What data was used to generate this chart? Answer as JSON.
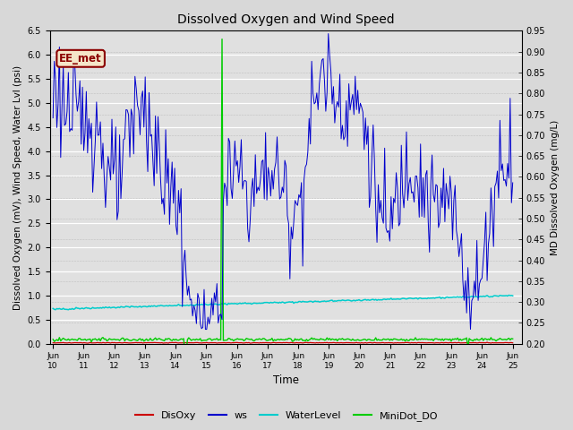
{
  "title": "Dissolved Oxygen and Wind Speed",
  "xlabel": "Time",
  "ylabel_left": "Dissolved Oxygen (mV), Wind Speed, Water Lvl (psi)",
  "ylabel_right": "MD Dissolved Oxygen (mg/L)",
  "ylim_left": [
    0.0,
    6.5
  ],
  "ylim_right": [
    0.2,
    0.95
  ],
  "yticks_left": [
    0.0,
    0.5,
    1.0,
    1.5,
    2.0,
    2.5,
    3.0,
    3.5,
    4.0,
    4.5,
    5.0,
    5.5,
    6.0,
    6.5
  ],
  "yticks_right": [
    0.2,
    0.25,
    0.3,
    0.35,
    0.4,
    0.45,
    0.5,
    0.55,
    0.6,
    0.65,
    0.7,
    0.75,
    0.8,
    0.85,
    0.9,
    0.95
  ],
  "xtick_labels": [
    "Jun\n10",
    "Jun\n11",
    "Jun\n12",
    "Jun\n13",
    "Jun\n14",
    "Jun\n15",
    "Jun\n16",
    "Jun\n17",
    "Jun\n18",
    "Jun\n19",
    "Jun\n20",
    "Jun\n21",
    "Jun\n22",
    "Jun\n23",
    "Jun\n24",
    "Jun\n25"
  ],
  "annotation_label": "EE_met",
  "annotation_border_color": "#8B0000",
  "annotation_text_color": "#8B0000",
  "annotation_bg_color": "#f5e6c8",
  "fig_bg_color": "#d8d8d8",
  "plot_bg_color": "#e0e0e0",
  "colors": {
    "DisOxy": "#cc0000",
    "ws": "#0000cc",
    "WaterLevel": "#00cccc",
    "MiniDot_DO": "#00cc00"
  },
  "legend_entries": [
    "DisOxy",
    "ws",
    "WaterLevel",
    "MiniDot_DO"
  ]
}
